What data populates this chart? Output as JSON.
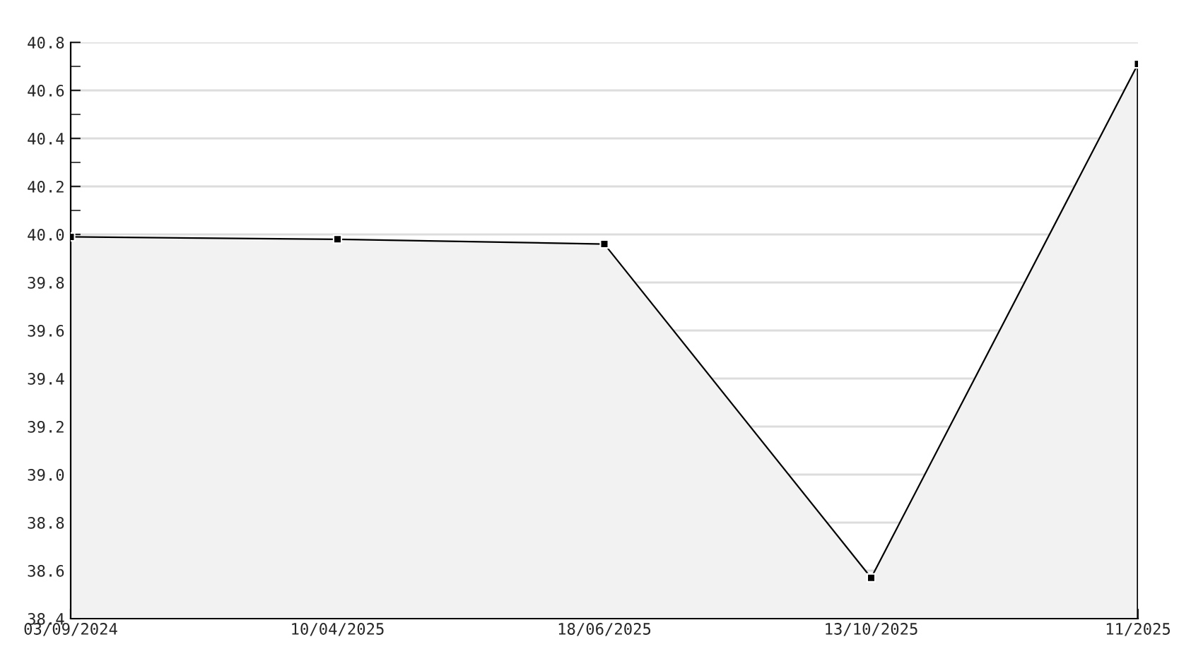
{
  "chart_data": {
    "type": "area",
    "categories": [
      "03/09/2024",
      "10/04/2025",
      "18/06/2025",
      "13/10/2025",
      "11/2025"
    ],
    "series": [
      {
        "color": "#000000",
        "values": [
          39.99,
          39.98,
          39.96,
          38.57,
          40.71
        ]
      }
    ],
    "ylim": [
      38.4,
      40.8
    ],
    "yticks": [
      38.4,
      38.6,
      38.8,
      {
        "value": 39.0,
        "label": "39.0"
      },
      39.2,
      39.4,
      39.6,
      39.8,
      {
        "value": 40.0,
        "label": "40.0"
      },
      40.2,
      40.4,
      40.6,
      40.8
    ],
    "grid": "y",
    "marker": "square",
    "line_style": "solid",
    "legend": false
  }
}
